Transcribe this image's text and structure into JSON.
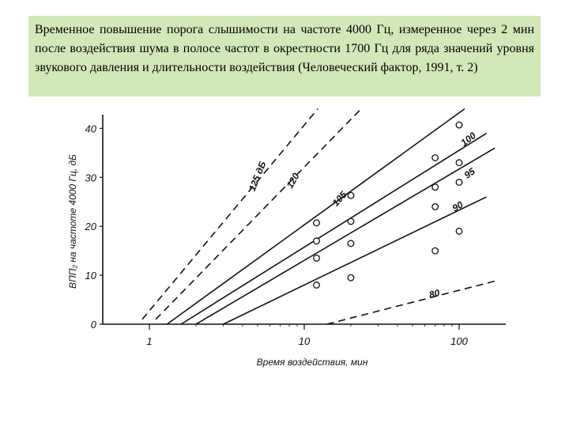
{
  "caption": "Временное повышение порога слышимости на частоте 4000 Гц, измеренное через 2 мин после воздействия шума в полосе частот в окрестности 1700 Гц для ряда значений уровня звукового давления и длительности воздействия (Человеческий фактор, 1991, т. 2)",
  "chart_data": {
    "type": "line",
    "title": "",
    "xlabel": "Время воздействия, мин",
    "ylabel": "ВПП₂ на частоте 4000 Гц, дБ",
    "x_scale": "log",
    "xlim": [
      0.5,
      200
    ],
    "ylim": [
      0,
      42
    ],
    "x_ticks": [
      1,
      10,
      100
    ],
    "x_tick_labels": [
      "1",
      "10",
      "100"
    ],
    "y_ticks": [
      0,
      10,
      20,
      30,
      40
    ],
    "y_tick_labels": [
      "0",
      "10",
      "20",
      "30",
      "40"
    ],
    "grid": false,
    "series": [
      {
        "name": "125 дБ",
        "style": "dashed",
        "line": [
          [
            0.9,
            1
          ],
          [
            13,
            45
          ]
        ],
        "points": []
      },
      {
        "name": "120",
        "style": "dashed",
        "line": [
          [
            1.1,
            1
          ],
          [
            25,
            45
          ]
        ],
        "points": []
      },
      {
        "name": "105",
        "style": "solid",
        "line": [
          [
            1.3,
            0
          ],
          [
            120,
            45
          ]
        ],
        "points": [
          [
            12,
            20.7
          ],
          [
            20,
            26.3
          ],
          [
            70,
            34
          ],
          [
            100,
            40.7
          ]
        ]
      },
      {
        "name": "100",
        "style": "solid",
        "line": [
          [
            1.6,
            0
          ],
          [
            150,
            39
          ]
        ],
        "points": [
          [
            12,
            17
          ],
          [
            20,
            21
          ],
          [
            70,
            28
          ],
          [
            100,
            33
          ]
        ]
      },
      {
        "name": "95",
        "style": "solid",
        "line": [
          [
            2,
            0
          ],
          [
            170,
            36
          ]
        ],
        "points": [
          [
            12,
            13.5
          ],
          [
            20,
            16.5
          ],
          [
            70,
            24
          ],
          [
            100,
            29
          ]
        ]
      },
      {
        "name": "90",
        "style": "solid",
        "line": [
          [
            3,
            0
          ],
          [
            150,
            26
          ]
        ],
        "points": [
          [
            12,
            8
          ],
          [
            20,
            9.5
          ],
          [
            70,
            15
          ],
          [
            100,
            19
          ]
        ]
      },
      {
        "name": "80",
        "style": "dashed",
        "line": [
          [
            14,
            0
          ],
          [
            180,
            9
          ]
        ],
        "points": []
      }
    ]
  }
}
